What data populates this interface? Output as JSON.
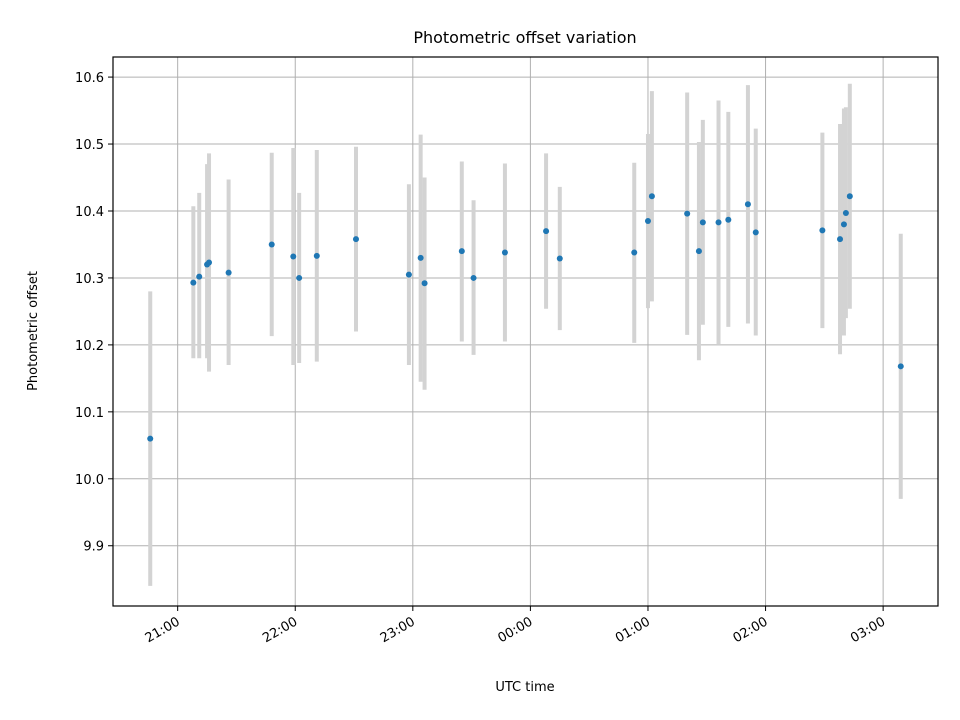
{
  "chart_data": {
    "type": "scatter",
    "title": "Photometric offset variation",
    "xlabel": "UTC time",
    "ylabel": "Photometric offset",
    "x_axis_type": "time",
    "x_ticks": [
      "21:00",
      "22:00",
      "23:00",
      "00:00",
      "01:00",
      "02:00",
      "03:00"
    ],
    "y_ticks": [
      "9.9",
      "10.0",
      "10.1",
      "10.2",
      "10.3",
      "10.4",
      "10.5",
      "10.6"
    ],
    "ylim": [
      9.81,
      10.63
    ],
    "xlim": [
      "20:27",
      "03:28"
    ],
    "grid": true,
    "legend": "none",
    "colors": {
      "points": "#1f77b4",
      "errorbars": "#d3d3d3"
    },
    "points": [
      {
        "time": "20:46",
        "y": 10.06,
        "ylow": 9.84,
        "yhigh": 10.28
      },
      {
        "time": "21:08",
        "y": 10.293,
        "ylow": 10.18,
        "yhigh": 10.407
      },
      {
        "time": "21:11",
        "y": 10.302,
        "ylow": 10.18,
        "yhigh": 10.427
      },
      {
        "time": "21:15",
        "y": 10.32,
        "ylow": 10.18,
        "yhigh": 10.47
      },
      {
        "time": "21:16",
        "y": 10.323,
        "ylow": 10.16,
        "yhigh": 10.486
      },
      {
        "time": "21:26",
        "y": 10.308,
        "ylow": 10.17,
        "yhigh": 10.447
      },
      {
        "time": "21:48",
        "y": 10.35,
        "ylow": 10.213,
        "yhigh": 10.487
      },
      {
        "time": "21:59",
        "y": 10.332,
        "ylow": 10.17,
        "yhigh": 10.494
      },
      {
        "time": "22:02",
        "y": 10.3,
        "ylow": 10.173,
        "yhigh": 10.427
      },
      {
        "time": "22:11",
        "y": 10.333,
        "ylow": 10.175,
        "yhigh": 10.491
      },
      {
        "time": "22:31",
        "y": 10.358,
        "ylow": 10.22,
        "yhigh": 10.496
      },
      {
        "time": "22:58",
        "y": 10.305,
        "ylow": 10.17,
        "yhigh": 10.44
      },
      {
        "time": "23:04",
        "y": 10.33,
        "ylow": 10.145,
        "yhigh": 10.514
      },
      {
        "time": "23:06",
        "y": 10.292,
        "ylow": 10.133,
        "yhigh": 10.45
      },
      {
        "time": "23:25",
        "y": 10.34,
        "ylow": 10.205,
        "yhigh": 10.474
      },
      {
        "time": "23:31",
        "y": 10.3,
        "ylow": 10.185,
        "yhigh": 10.416
      },
      {
        "time": "23:47",
        "y": 10.338,
        "ylow": 10.205,
        "yhigh": 10.471
      },
      {
        "time": "00:08",
        "y": 10.37,
        "ylow": 10.254,
        "yhigh": 10.486
      },
      {
        "time": "00:15",
        "y": 10.329,
        "ylow": 10.222,
        "yhigh": 10.436
      },
      {
        "time": "00:53",
        "y": 10.338,
        "ylow": 10.203,
        "yhigh": 10.472
      },
      {
        "time": "01:00",
        "y": 10.385,
        "ylow": 10.255,
        "yhigh": 10.515
      },
      {
        "time": "01:02",
        "y": 10.422,
        "ylow": 10.265,
        "yhigh": 10.579
      },
      {
        "time": "01:20",
        "y": 10.396,
        "ylow": 10.215,
        "yhigh": 10.577
      },
      {
        "time": "01:26",
        "y": 10.34,
        "ylow": 10.177,
        "yhigh": 10.503
      },
      {
        "time": "01:28",
        "y": 10.383,
        "ylow": 10.23,
        "yhigh": 10.536
      },
      {
        "time": "01:36",
        "y": 10.383,
        "ylow": 10.2,
        "yhigh": 10.565
      },
      {
        "time": "01:41",
        "y": 10.387,
        "ylow": 10.227,
        "yhigh": 10.548
      },
      {
        "time": "01:51",
        "y": 10.41,
        "ylow": 10.232,
        "yhigh": 10.588
      },
      {
        "time": "01:55",
        "y": 10.368,
        "ylow": 10.214,
        "yhigh": 10.523
      },
      {
        "time": "02:29",
        "y": 10.371,
        "ylow": 10.225,
        "yhigh": 10.517
      },
      {
        "time": "02:38",
        "y": 10.358,
        "ylow": 10.186,
        "yhigh": 10.53
      },
      {
        "time": "02:40",
        "y": 10.38,
        "ylow": 10.214,
        "yhigh": 10.553
      },
      {
        "time": "02:41",
        "y": 10.397,
        "ylow": 10.24,
        "yhigh": 10.555
      },
      {
        "time": "02:43",
        "y": 10.422,
        "ylow": 10.254,
        "yhigh": 10.59
      },
      {
        "time": "03:09",
        "y": 10.168,
        "ylow": 9.97,
        "yhigh": 10.366
      }
    ]
  }
}
